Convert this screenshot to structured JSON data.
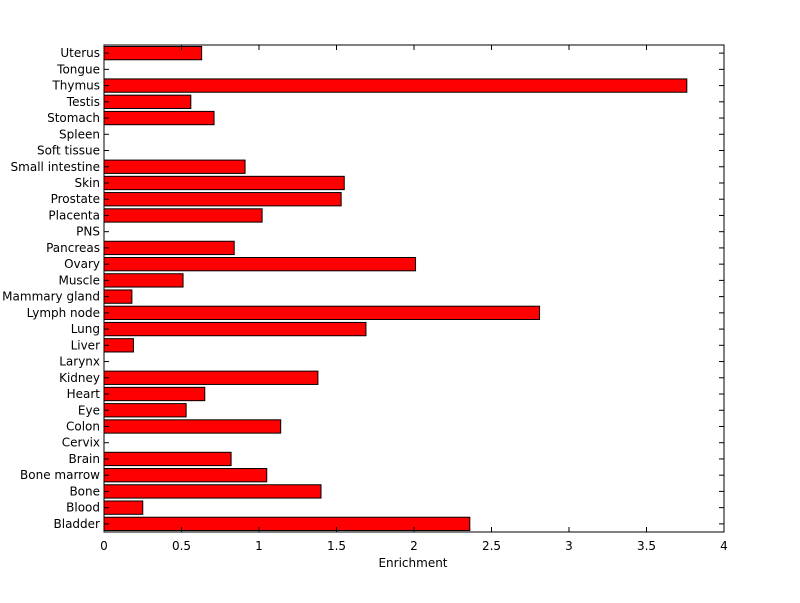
{
  "chart_data": {
    "type": "bar",
    "orientation": "horizontal",
    "xlabel": "Enrichment",
    "ylabel": "",
    "title": "",
    "xlim": [
      0,
      4
    ],
    "xticks": [
      0,
      0.5,
      1,
      1.5,
      2,
      2.5,
      3,
      3.5,
      4
    ],
    "xtick_labels": [
      "0",
      "0.5",
      "1",
      "1.5",
      "2",
      "2.5",
      "3",
      "3.5",
      "4"
    ],
    "grid": false,
    "bar_color": "#ff0000",
    "categories": [
      "Bladder",
      "Blood",
      "Bone",
      "Bone marrow",
      "Brain",
      "Cervix",
      "Colon",
      "Eye",
      "Heart",
      "Kidney",
      "Larynx",
      "Liver",
      "Lung",
      "Lymph node",
      "Mammary gland",
      "Muscle",
      "Ovary",
      "Pancreas",
      "PNS",
      "Placenta",
      "Prostate",
      "Skin",
      "Small intestine",
      "Soft tissue",
      "Spleen",
      "Stomach",
      "Testis",
      "Thymus",
      "Tongue",
      "Uterus"
    ],
    "values": [
      2.36,
      0.25,
      1.4,
      1.05,
      0.82,
      0,
      1.14,
      0.53,
      0.65,
      1.38,
      0,
      0.19,
      1.69,
      2.81,
      0.18,
      0.51,
      2.01,
      0.84,
      0,
      1.02,
      1.53,
      1.55,
      0.91,
      0,
      0,
      0.71,
      0.56,
      3.76,
      0,
      0.63
    ]
  }
}
